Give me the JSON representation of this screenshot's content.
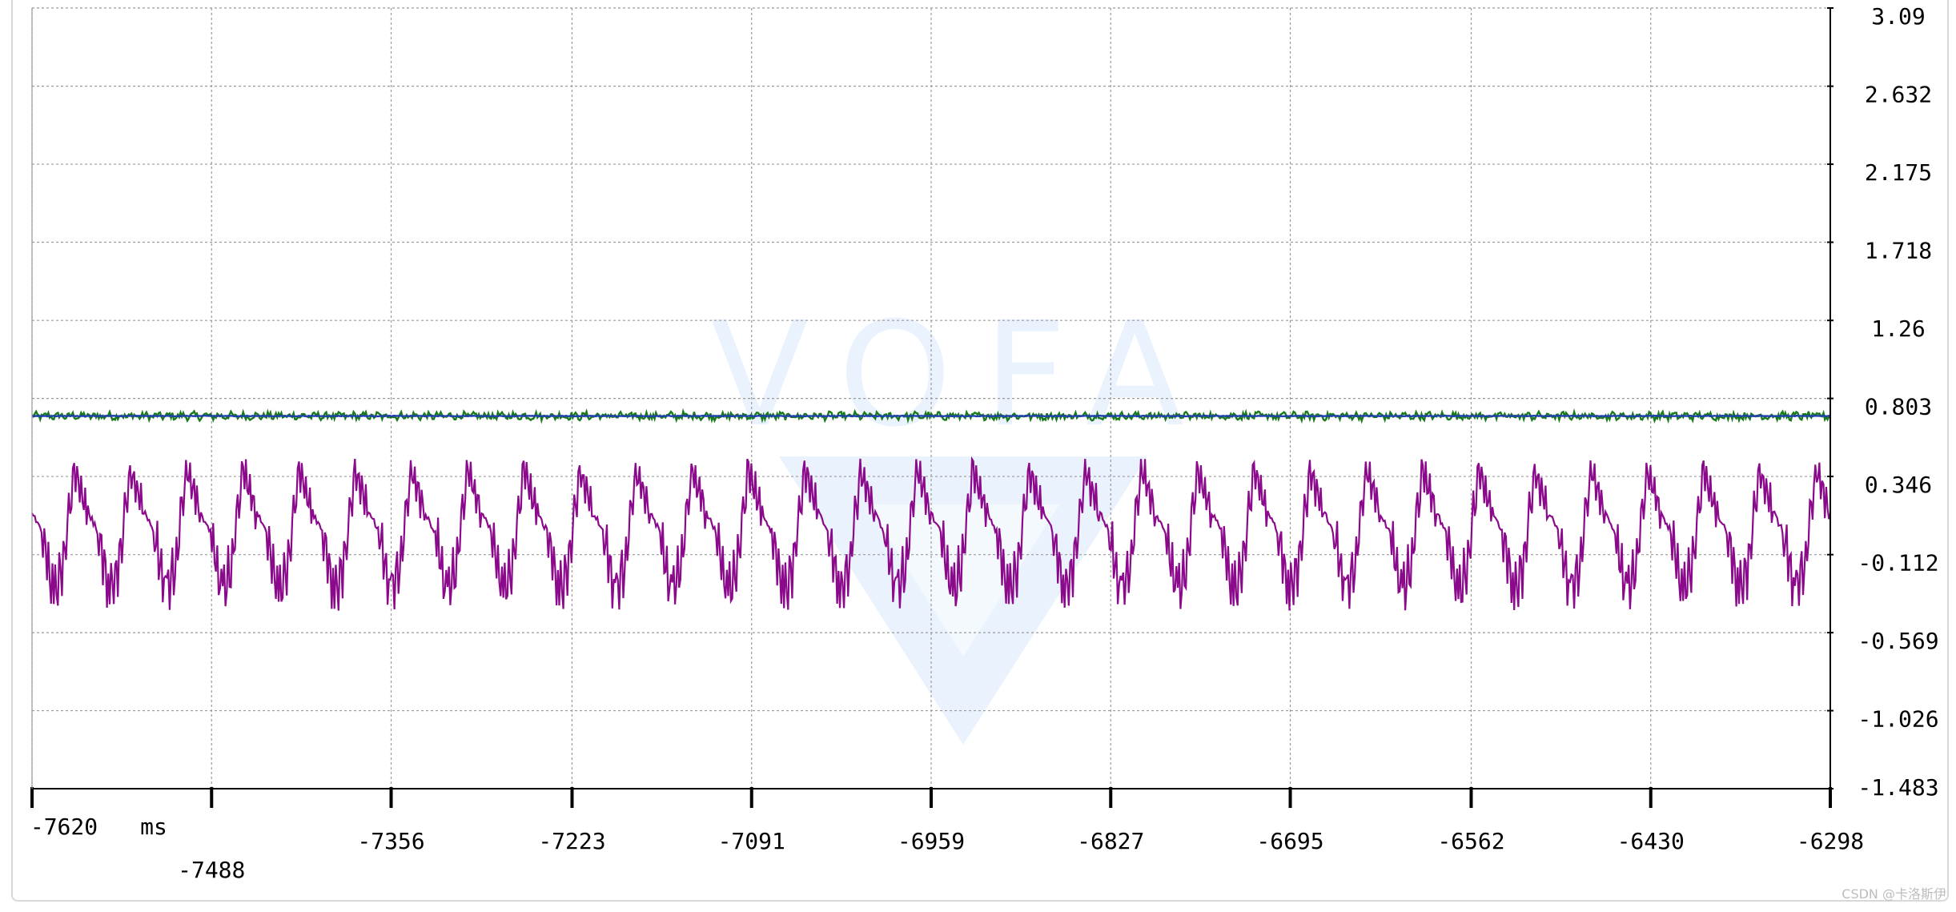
{
  "chart_data": {
    "type": "line",
    "x_unit": "ms",
    "x_ticks": [
      -7620,
      -7488,
      -7356,
      -7223,
      -7091,
      -6959,
      -6827,
      -6695,
      -6562,
      -6430,
      -6298
    ],
    "x_tick_labels": [
      "-7620",
      "-7488",
      "-7356",
      "-7223",
      "-7091",
      "-6959",
      "-6827",
      "-6695",
      "-6562",
      "-6430",
      "-6298"
    ],
    "xlim": [
      -7620,
      -6298
    ],
    "y_tick_labels": [
      "3.09",
      "2.632",
      "2.175",
      "1.718",
      "1.26",
      "0.803",
      "0.346",
      "-0.112",
      "-0.569",
      "-1.026",
      "-1.483"
    ],
    "ylim": [
      -1.483,
      3.09
    ],
    "grid": true,
    "legend": "none",
    "series": [
      {
        "color": "#1a7a1a",
        "style": "noisy-flat",
        "level": 0.7,
        "noise": 0.02
      },
      {
        "color": "#1f3fae",
        "style": "flat",
        "level": 0.7
      },
      {
        "color": "#8b0a8b",
        "style": "periodic",
        "period_ms": 41.3,
        "min": -0.42,
        "max": 0.43
      }
    ]
  },
  "watermark_text": "CSDN @卡洛斯伊",
  "background_logo_text": "VOFA",
  "colors": {
    "grid": "#9a9a9a",
    "axis": "#000000",
    "logo": "#eaf3fd"
  }
}
